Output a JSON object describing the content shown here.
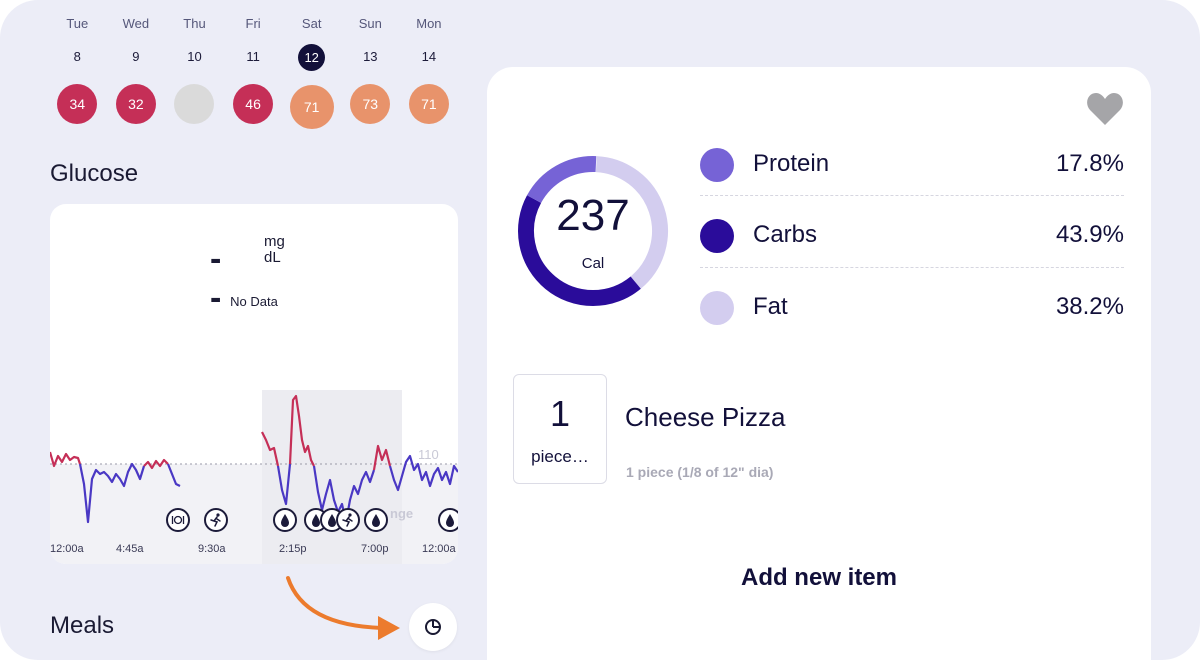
{
  "week": {
    "days": [
      {
        "name": "Tue",
        "num": "8",
        "score": "34",
        "color": "#c52f57",
        "selected": false
      },
      {
        "name": "Wed",
        "num": "9",
        "score": "32",
        "color": "#c52f57",
        "selected": false
      },
      {
        "name": "Thu",
        "num": "10",
        "score": "",
        "color": "#dadada",
        "selected": false
      },
      {
        "name": "Fri",
        "num": "11",
        "score": "46",
        "color": "#c52f57",
        "selected": false
      },
      {
        "name": "Sat",
        "num": "12",
        "score": "71",
        "color": "#e8936b",
        "selected": true
      },
      {
        "name": "Sun",
        "num": "13",
        "score": "73",
        "color": "#e8936b",
        "selected": false
      },
      {
        "name": "Mon",
        "num": "14",
        "score": "71",
        "color": "#e8936b",
        "selected": false
      }
    ]
  },
  "glucose": {
    "title": "Glucose",
    "reading": "--",
    "unit_top": "mg",
    "unit_bottom": "dL",
    "status": "No Data",
    "reference_value": "110",
    "range_text": "nge",
    "time_labels": [
      "12:00a",
      "4:45a",
      "9:30a",
      "2:15p",
      "7:00p",
      "12:00a"
    ],
    "events": [
      {
        "type": "meal",
        "icon": "fork-knife-icon"
      },
      {
        "type": "exercise",
        "icon": "runner-icon"
      },
      {
        "type": "insulin",
        "icon": "drop-icon"
      },
      {
        "type": "insulin",
        "icon": "drop-icon"
      },
      {
        "type": "insulin",
        "icon": "drop-icon"
      },
      {
        "type": "exercise",
        "icon": "runner-icon"
      },
      {
        "type": "insulin",
        "icon": "drop-icon"
      },
      {
        "type": "insulin",
        "icon": "drop-icon"
      }
    ],
    "colors": {
      "high": "#c52f57",
      "in_range": "#4a38c4"
    }
  },
  "meals": {
    "title": "Meals",
    "pie_button_icon": "pie-chart-icon"
  },
  "detail": {
    "favorite_icon": "heart-icon",
    "calories": {
      "value": "237",
      "label": "Cal"
    },
    "macros": [
      {
        "name": "Protein",
        "percent": "17.8%",
        "fraction": 0.178,
        "color": "#7663d6"
      },
      {
        "name": "Carbs",
        "percent": "43.9%",
        "fraction": 0.439,
        "color": "#2a0c9a"
      },
      {
        "name": "Fat",
        "percent": "38.2%",
        "fraction": 0.382,
        "color": "#d3cdef"
      }
    ],
    "item": {
      "quantity": "1",
      "unit": "piece…",
      "name": "Cheese Pizza",
      "serving": "1 piece (1/8 of 12\" dia)"
    },
    "add_item_label": "Add new item"
  },
  "annotation": {
    "arrow_color": "#ec7b2d"
  }
}
